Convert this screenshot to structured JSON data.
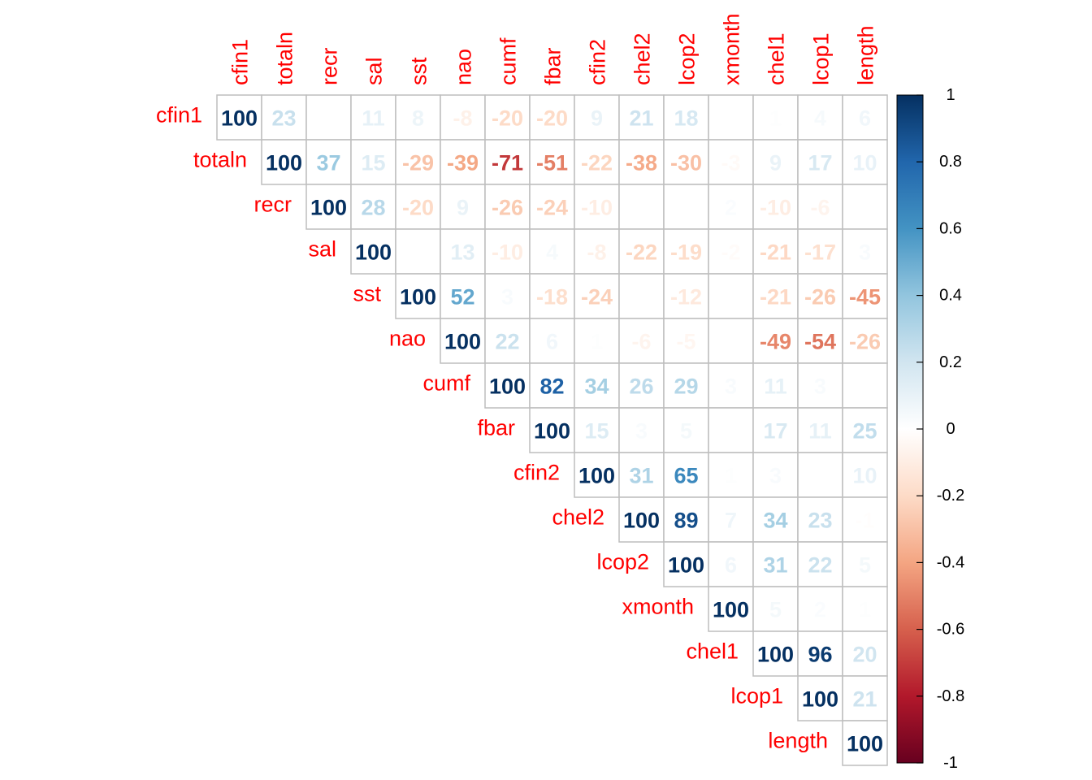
{
  "chart_data": {
    "type": "heatmap",
    "style": "upper-triangle correlation matrix (corrplot, method=number)",
    "variables": [
      "cfin1",
      "totaln",
      "recr",
      "sal",
      "sst",
      "nao",
      "cumf",
      "fbar",
      "cfin2",
      "chel2",
      "lcop2",
      "xmonth",
      "chel1",
      "lcop1",
      "length"
    ],
    "value_scale": "correlation x 100",
    "matrix_upper": [
      [
        100,
        23,
        0,
        11,
        8,
        -8,
        -20,
        -20,
        9,
        21,
        18,
        0,
        1,
        4,
        6
      ],
      [
        100,
        37,
        15,
        -29,
        -39,
        -71,
        -51,
        -22,
        -38,
        -30,
        -3,
        9,
        17,
        10
      ],
      [
        100,
        28,
        -20,
        9,
        -26,
        -24,
        -10,
        0,
        0,
        2,
        -10,
        -6,
        0
      ],
      [
        100,
        0,
        13,
        -10,
        4,
        -8,
        -22,
        -19,
        -2,
        -21,
        -17,
        3
      ],
      [
        100,
        52,
        3,
        -18,
        -24,
        0,
        -12,
        0,
        -21,
        -26,
        -45
      ],
      [
        100,
        22,
        6,
        1,
        -6,
        -5,
        0,
        -49,
        -54,
        -26
      ],
      [
        100,
        82,
        34,
        26,
        29,
        3,
        11,
        3,
        0
      ],
      [
        100,
        15,
        3,
        5,
        0,
        17,
        11,
        25
      ],
      [
        100,
        31,
        65,
        1,
        3,
        0,
        10
      ],
      [
        100,
        89,
        7,
        34,
        23,
        -1
      ],
      [
        100,
        6,
        31,
        22,
        5
      ],
      [
        100,
        5,
        2,
        1
      ],
      [
        100,
        96,
        20
      ],
      [
        100,
        21
      ],
      [
        100
      ]
    ],
    "colorbar": {
      "range": [
        -1,
        1
      ],
      "ticks": [
        "1",
        "0.8",
        "0.6",
        "0.4",
        "0.2",
        "0",
        "-0.2",
        "-0.4",
        "-0.6",
        "-0.8",
        "-1"
      ],
      "palette": [
        "#67001F",
        "#B2182B",
        "#D6604D",
        "#F4A582",
        "#FDDBC7",
        "#FFFFFF",
        "#D1E5F0",
        "#92C5DE",
        "#4393C3",
        "#2166AC",
        "#053061"
      ]
    },
    "label_color": "#FF0000",
    "grid_color": "#BEBEBE"
  }
}
